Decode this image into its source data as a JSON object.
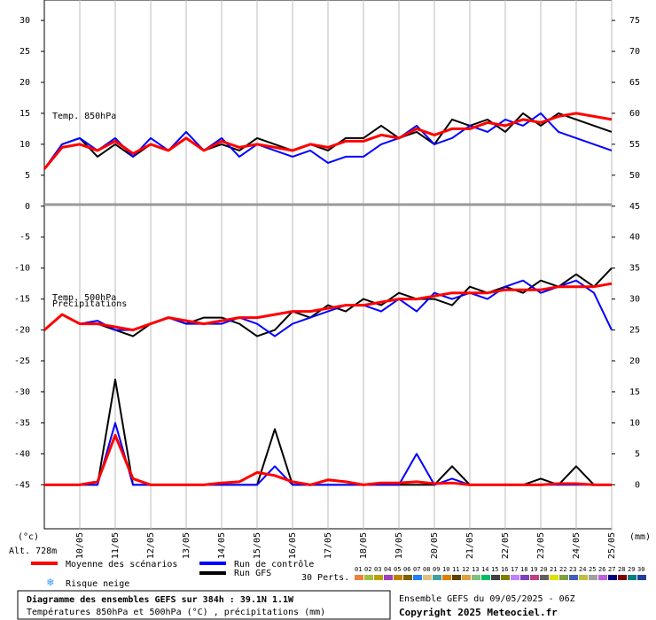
{
  "chart_data": {
    "type": "line",
    "labels": {
      "top_panel": "Temp. 850hPa",
      "mid_panel": "Temp. 500hPa",
      "precip_panel": "Précipitations",
      "left_unit": "(°c)",
      "right_unit": "(mm)",
      "altitude": "Alt. 728m"
    },
    "categories": [
      null,
      null,
      "10/05",
      null,
      "11/05",
      null,
      "12/05",
      null,
      "13/05",
      null,
      "14/05",
      null,
      "15/05",
      null,
      "16/05",
      null,
      "17/05",
      null,
      "18/05",
      null,
      "19/05",
      null,
      "20/05",
      null,
      "21/05",
      null,
      "22/05",
      null,
      "23/05",
      null,
      "24/05",
      null,
      "25/05"
    ],
    "ylim": [
      -52.1,
      33.3
    ],
    "yticks": [
      30,
      25,
      20,
      15,
      10,
      5,
      0,
      -5,
      -10,
      -15,
      -20,
      -25,
      -30,
      -35,
      -40,
      -45
    ],
    "y2lim": [
      -7.1,
      78.3
    ],
    "y2ticks": [
      75,
      70,
      65,
      60,
      55,
      50,
      45,
      40,
      35,
      30,
      25,
      20,
      15,
      10,
      5,
      0
    ],
    "grid": true,
    "series": [
      {
        "name": "Moyenne des scénarios",
        "color": "#ff0000",
        "temp850": [
          6,
          9.5,
          10,
          9,
          10.5,
          8.5,
          10,
          9,
          11,
          9,
          10.5,
          9.5,
          10,
          9.5,
          9,
          10,
          9.5,
          10.5,
          10.5,
          11.5,
          11,
          12.5,
          11.5,
          12.5,
          12.5,
          13.5,
          13,
          14,
          13.5,
          14.5,
          15,
          14.5,
          14
        ],
        "temp500": [
          -20,
          -17.5,
          -19,
          -19,
          -19.5,
          -20,
          -19,
          -18,
          -18.5,
          -19,
          -18.5,
          -18,
          -18,
          -17.5,
          -17,
          -17,
          -16.5,
          -16,
          -16,
          -15.5,
          -15,
          -15,
          -14.5,
          -14,
          -14,
          -14,
          -13.5,
          -13.5,
          -13.5,
          -13,
          -13,
          -13,
          -12.5
        ],
        "precip": [
          0,
          0,
          0,
          0.5,
          8,
          1,
          0,
          0,
          0,
          0,
          0.3,
          0.5,
          2,
          1.5,
          0.5,
          0,
          0.8,
          0.5,
          0,
          0.3,
          0.3,
          0.5,
          0.2,
          0.3,
          0,
          0,
          0,
          0,
          0,
          0.2,
          0.2,
          0,
          0
        ]
      },
      {
        "name": "Run de contrôle",
        "color": "#0000ff",
        "temp850": [
          6,
          10,
          11,
          9,
          11,
          8,
          11,
          9,
          12,
          9,
          11,
          8,
          10,
          9,
          8,
          9,
          7,
          8,
          8,
          10,
          11,
          13,
          10,
          11,
          13,
          12,
          14,
          13,
          15,
          12,
          11,
          10,
          9
        ],
        "temp500": [
          -20,
          -17.5,
          -19,
          -18.5,
          -20,
          -20,
          -19,
          -18,
          -19,
          -19,
          -19,
          -18,
          -19,
          -21,
          -19,
          -18,
          -17,
          -16,
          -16,
          -17,
          -15,
          -17,
          -14,
          -15,
          -14,
          -15,
          -13,
          -12,
          -14,
          -13,
          -12,
          -14,
          -20
        ],
        "precip": [
          0,
          0,
          0,
          0,
          10,
          0,
          0,
          0,
          0,
          0,
          0,
          0,
          0,
          3,
          0,
          0,
          0,
          0,
          0,
          0,
          0,
          5,
          0,
          1,
          0,
          0,
          0,
          0,
          0,
          0,
          0,
          0,
          0
        ]
      },
      {
        "name": "Run GFS",
        "color": "#000000",
        "temp850": [
          6,
          10,
          11,
          8,
          10,
          8,
          10,
          9,
          11,
          9,
          10,
          9,
          11,
          10,
          9,
          10,
          9,
          11,
          11,
          13,
          11,
          12,
          10,
          14,
          13,
          14,
          12,
          15,
          13,
          15,
          14,
          13,
          12
        ],
        "temp500": [
          -20,
          -17.5,
          -19,
          -19,
          -20,
          -21,
          -19,
          -18,
          -19,
          -18,
          -18,
          -19,
          -21,
          -20,
          -17,
          -18,
          -16,
          -17,
          -15,
          -16,
          -14,
          -15,
          -15,
          -16,
          -13,
          -14,
          -13,
          -14,
          -12,
          -13,
          -11,
          -13,
          -10
        ],
        "precip": [
          0,
          0,
          0,
          0,
          17,
          0,
          0,
          0,
          0,
          0,
          0,
          0,
          0,
          9,
          0,
          0,
          0,
          0,
          0,
          0,
          0,
          0,
          0,
          3,
          0,
          0,
          0,
          0,
          1,
          0,
          3,
          0,
          0
        ]
      }
    ],
    "snow_label": "Risque neige",
    "perturbations": {
      "label": "30 Perts.",
      "members": [
        {
          "id": "01",
          "color": "#f08040"
        },
        {
          "id": "02",
          "color": "#a0c040"
        },
        {
          "id": "03",
          "color": "#c0a000"
        },
        {
          "id": "04",
          "color": "#a040c0"
        },
        {
          "id": "05",
          "color": "#c08000"
        },
        {
          "id": "06",
          "color": "#806000"
        },
        {
          "id": "07",
          "color": "#2080ff"
        },
        {
          "id": "08",
          "color": "#e0c080"
        },
        {
          "id": "09",
          "color": "#40a0a0"
        },
        {
          "id": "10",
          "color": "#e08000"
        },
        {
          "id": "11",
          "color": "#604000"
        },
        {
          "id": "12",
          "color": "#e0a040"
        },
        {
          "id": "13",
          "color": "#80c080"
        },
        {
          "id": "14",
          "color": "#00c060"
        },
        {
          "id": "15",
          "color": "#404040"
        },
        {
          "id": "16",
          "color": "#808000"
        },
        {
          "id": "17",
          "color": "#c080ff"
        },
        {
          "id": "18",
          "color": "#8040c0"
        },
        {
          "id": "19",
          "color": "#c04080"
        },
        {
          "id": "20",
          "color": "#606060"
        },
        {
          "id": "21",
          "color": "#e0e000"
        },
        {
          "id": "22",
          "color": "#80a040"
        },
        {
          "id": "23",
          "color": "#4060c0"
        },
        {
          "id": "24",
          "color": "#c0c040"
        },
        {
          "id": "25",
          "color": "#a0a0a0"
        },
        {
          "id": "26",
          "color": "#c060e0"
        },
        {
          "id": "27",
          "color": "#000080"
        },
        {
          "id": "28",
          "color": "#800000"
        },
        {
          "id": "29",
          "color": "#008080"
        },
        {
          "id": "30",
          "color": "#2040a0"
        }
      ]
    },
    "footer": {
      "title": "Diagramme des ensembles GEFS sur 384h : 39.1N 1.1W",
      "subtitle": "Températures 850hPa et 500hPa (°C) , précipitations (mm)",
      "run": "Ensemble GEFS du 09/05/2025 - 06Z",
      "copyright": "Copyright 2025 Meteociel.fr"
    }
  }
}
